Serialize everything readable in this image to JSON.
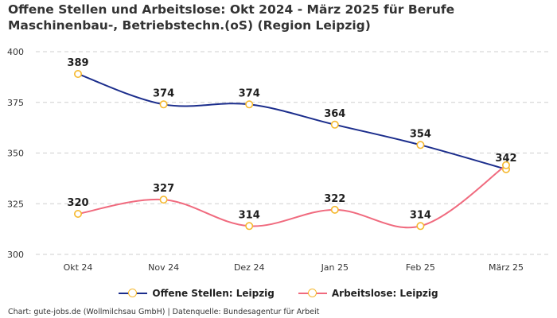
{
  "chart_data": {
    "type": "line",
    "title": "Offene Stellen und Arbeitslose: Okt 2024 - März 2025 für Berufe Maschinenbau-, Betriebstechn.(oS) (Region Leipzig)",
    "categories": [
      "Okt 24",
      "Nov 24",
      "Dez 24",
      "Jan 25",
      "Feb 25",
      "März 25"
    ],
    "series": [
      {
        "name": "Offene Stellen: Leipzig",
        "values": [
          389,
          374,
          374,
          364,
          354,
          342
        ],
        "color": "#1b2d8c",
        "labels": [
          "389",
          "374",
          "374",
          "364",
          "354",
          "342"
        ]
      },
      {
        "name": "Arbeitslose: Leipzig",
        "values": [
          320,
          327,
          314,
          322,
          314,
          344
        ],
        "color": "#f06a7e",
        "labels": [
          "320",
          "327",
          "314",
          "322",
          "314",
          ""
        ]
      }
    ],
    "marker_color": "#f5b82e",
    "ylim": [
      300,
      400
    ],
    "yticks": [
      300,
      325,
      350,
      375,
      400
    ],
    "ytick_labels": [
      "300",
      "325",
      "350",
      "375",
      "400"
    ],
    "grid": true,
    "legend_position": "bottom",
    "xlabel": "",
    "ylabel": ""
  },
  "footer": {
    "source": "Chart: gute-jobs.de (Wollmilchsau GmbH) | Datenquelle: Bundesagentur für Arbeit"
  }
}
